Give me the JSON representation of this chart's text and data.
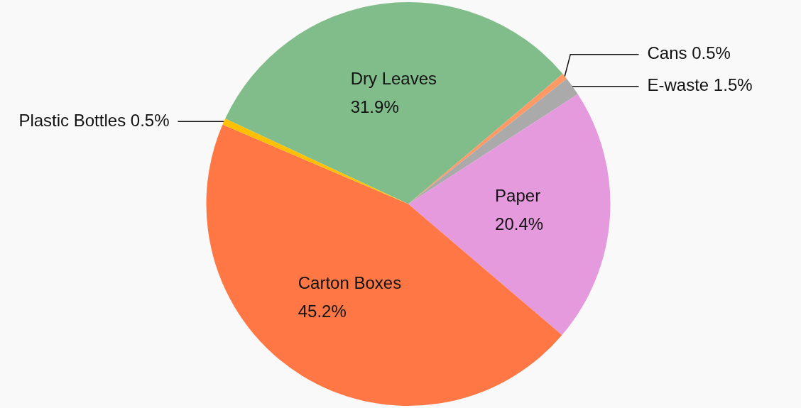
{
  "chart_data": {
    "type": "pie",
    "categories": [
      "Dry Leaves",
      "Cans",
      "E-waste",
      "Paper",
      "Carton Boxes",
      "Plastic Bottles"
    ],
    "values": [
      31.9,
      0.5,
      1.5,
      20.4,
      45.2,
      0.5
    ],
    "value_labels": [
      "31.9%",
      "0.5%",
      "1.5%",
      "20.4%",
      "45.2%",
      "0.5%"
    ],
    "colors": [
      "#81bd8a",
      "#ff9966",
      "#aaaaaa",
      "#e59ade",
      "#ff7744",
      "#ffc000"
    ],
    "legend": false
  }
}
